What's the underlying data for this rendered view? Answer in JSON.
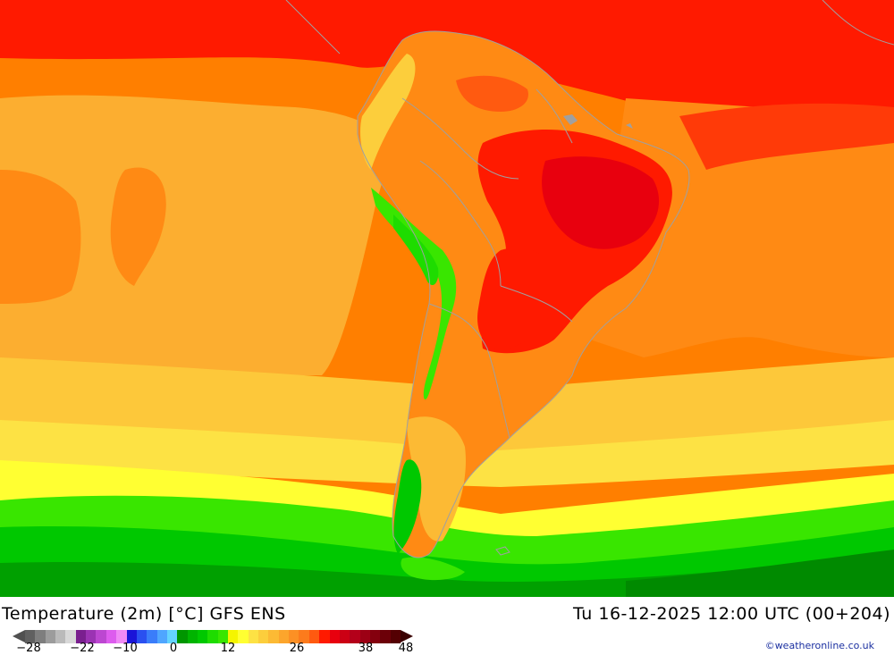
{
  "map": {
    "region": "South America",
    "field": "2m temperature",
    "colors": {
      "hot_red": "#ff1a00",
      "deep_red": "#e8000e",
      "orange": "#ff7f00",
      "light_orange": "#fcae30",
      "yellow_orange": "#fdc83a",
      "yellow": "#ffff32",
      "light_green": "#39e600",
      "green": "#00c800",
      "dark_green": "#009600",
      "border_gray": "#a0a0a0"
    }
  },
  "header": {
    "title": "Temperature (2m) [°C] GFS ENS",
    "datetime": "Tu 16-12-2025 12:00 UTC (00+204)"
  },
  "legend": {
    "ticks": [
      "−28",
      "−22",
      "−10",
      "0",
      "12",
      "26",
      "38",
      "48"
    ],
    "swatches": [
      "#606060",
      "#7e7e7e",
      "#9c9c9c",
      "#bababa",
      "#d8d8d8",
      "#7a1f8f",
      "#9b33b3",
      "#bc47d1",
      "#dd5cee",
      "#f089f6",
      "#1a14d8",
      "#2a50f0",
      "#3a7dfa",
      "#4fa6ff",
      "#64d4ff",
      "#009600",
      "#00b400",
      "#00c800",
      "#1edc00",
      "#39e600",
      "#f5f500",
      "#ffff32",
      "#fde244",
      "#fcce3c",
      "#fcba34",
      "#fca52c",
      "#fc9024",
      "#fc7b1c",
      "#ff5a10",
      "#ff1a00",
      "#e8000e",
      "#cc0014",
      "#b4001a",
      "#9c0014",
      "#84000e",
      "#6c0008",
      "#540002"
    ],
    "credit": "©weatheronline.co.uk"
  }
}
